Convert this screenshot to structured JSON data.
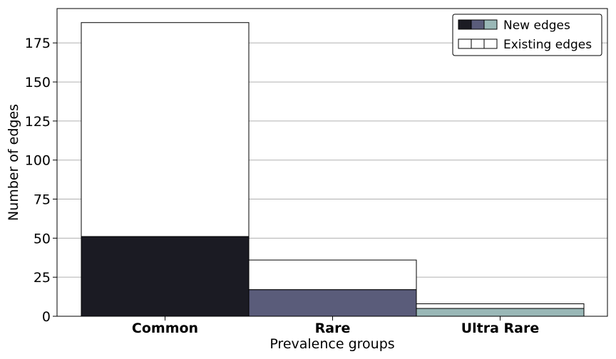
{
  "chart_data": {
    "type": "bar",
    "stacked_overlay": true,
    "categories": [
      "Common",
      "Rare",
      "Ultra Rare"
    ],
    "series": [
      {
        "name": "New edges",
        "values": [
          51,
          17,
          5
        ],
        "colors": [
          "#1b1b23",
          "#5a5c7a",
          "#9ab8b7"
        ]
      },
      {
        "name": "Existing edges",
        "values": [
          137,
          19,
          3
        ],
        "colors": [
          "#ffffff",
          "#ffffff",
          "#ffffff"
        ]
      }
    ],
    "totals": [
      188,
      36,
      8
    ],
    "xlabel": "Prevalence groups",
    "ylabel": "Number of edges",
    "ylim": [
      0,
      197
    ],
    "yticks": [
      0,
      25,
      50,
      75,
      100,
      125,
      150,
      175
    ],
    "grid": true,
    "legend_position": "top-right",
    "colors": {
      "grid": "#b0b0b0",
      "edge": "#000000",
      "background": "#ffffff"
    }
  }
}
